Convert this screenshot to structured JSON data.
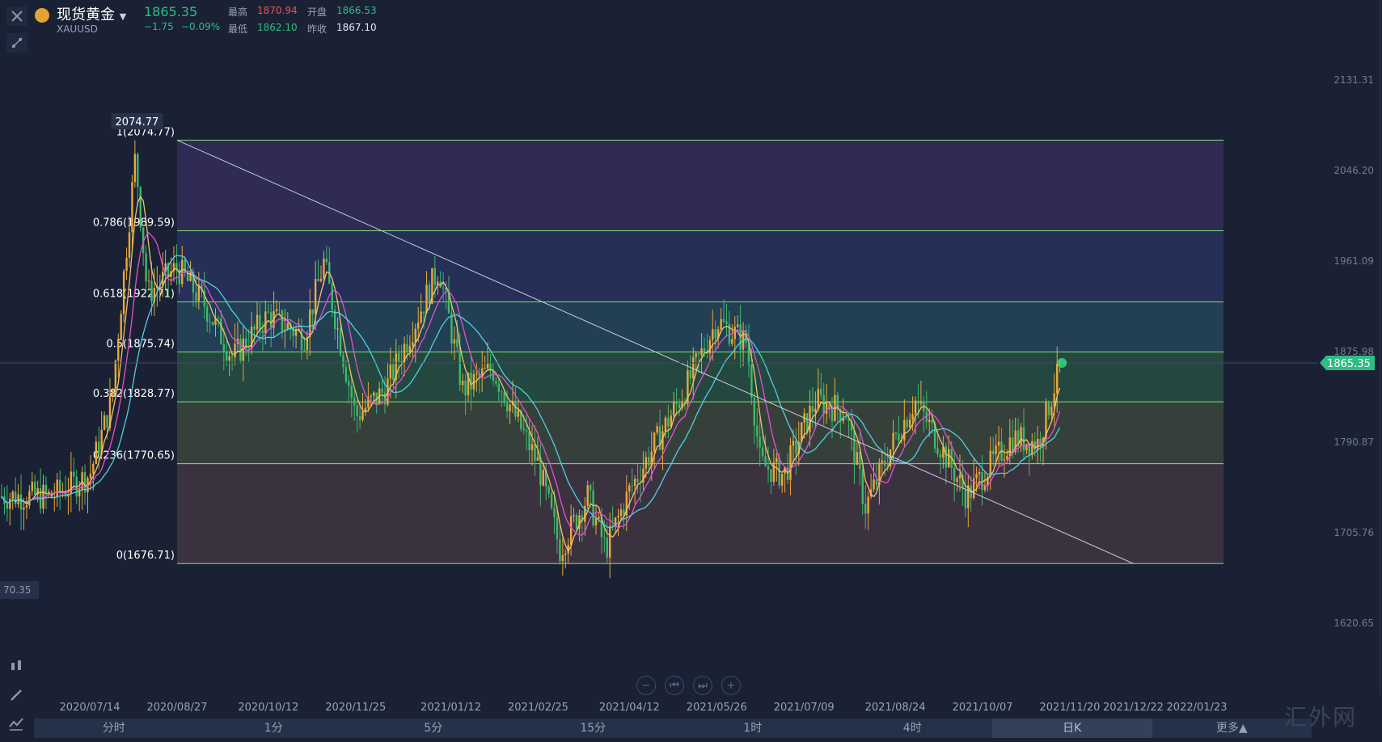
{
  "header": {
    "name": "现货黄金",
    "symbol": "XAUUSD",
    "price": "1865.35",
    "change": "−1.75",
    "change_pct": "−0.09%",
    "high_label": "最高",
    "high": "1870.94",
    "open_label": "开盘",
    "open": "1866.53",
    "low_label": "最低",
    "low": "1862.10",
    "prev_label": "昨收",
    "prev": "1867.10"
  },
  "timeframes": [
    "分时",
    "1分",
    "5分",
    "15分",
    "1时",
    "4时",
    "日K",
    "更多▲"
  ],
  "active_timeframe": "日K",
  "watermark": "汇外网",
  "colors": {
    "up": "#e8a83c",
    "down": "#3fb96b",
    "ma5": "#f0c36b",
    "ma10": "#e64fd1",
    "ma20": "#4fd0e0",
    "fib_line": "#7fe07c",
    "price_tag": "#2ebd85"
  },
  "chart_data": {
    "type": "candlestick",
    "y_ticks": [
      2131.31,
      2046.2,
      1961.09,
      1875.98,
      1790.87,
      1705.76,
      1620.65
    ],
    "x_ticks": [
      "2020/07/14",
      "2020/08/27",
      "2020/10/12",
      "2020/11/25",
      "2021/01/12",
      "2021/02/25",
      "2021/04/12",
      "2021/05/26",
      "2021/07/09",
      "2021/08/24",
      "2021/10/07",
      "2021/11/20",
      "2021/12/22",
      "2022/01/23"
    ],
    "current_price": "1865.35",
    "left_edge_label": "70.35",
    "high_marker": "2074.77",
    "fibonacci": [
      {
        "label": "1(2074.77)",
        "value": 2074.77
      },
      {
        "label": "0.786(1989.59)",
        "value": 1989.59
      },
      {
        "label": "0.618(1922.71)",
        "value": 1922.71
      },
      {
        "label": "0.5(1875.74)",
        "value": 1875.74
      },
      {
        "label": "0.382(1828.77)",
        "value": 1828.77
      },
      {
        "label": "0.236(1770.65)",
        "value": 1770.65
      },
      {
        "label": "0(1676.71)",
        "value": 1676.71
      }
    ],
    "trendline": {
      "from": {
        "date": "2020/08/27",
        "value": 2074.77
      },
      "to": {
        "date": "2021/12/22",
        "value": 1676.71
      }
    },
    "path_keypoints": [
      {
        "date": "2020/06/25",
        "value": 1740
      },
      {
        "date": "2020/07/14",
        "value": 1760
      },
      {
        "date": "2020/07/25",
        "value": 1830
      },
      {
        "date": "2020/08/06",
        "value": 2060
      },
      {
        "date": "2020/08/12",
        "value": 1930
      },
      {
        "date": "2020/08/27",
        "value": 1955
      },
      {
        "date": "2020/09/10",
        "value": 1920
      },
      {
        "date": "2020/09/24",
        "value": 1870
      },
      {
        "date": "2020/10/12",
        "value": 1910
      },
      {
        "date": "2020/10/30",
        "value": 1890
      },
      {
        "date": "2020/11/09",
        "value": 1960
      },
      {
        "date": "2020/11/25",
        "value": 1815
      },
      {
        "date": "2020/12/10",
        "value": 1840
      },
      {
        "date": "2021/01/06",
        "value": 1955
      },
      {
        "date": "2021/01/18",
        "value": 1840
      },
      {
        "date": "2021/02/02",
        "value": 1860
      },
      {
        "date": "2021/02/25",
        "value": 1770
      },
      {
        "date": "2021/03/08",
        "value": 1690
      },
      {
        "date": "2021/03/22",
        "value": 1740
      },
      {
        "date": "2021/03/31",
        "value": 1690
      },
      {
        "date": "2021/04/12",
        "value": 1745
      },
      {
        "date": "2021/05/10",
        "value": 1840
      },
      {
        "date": "2021/05/26",
        "value": 1905
      },
      {
        "date": "2021/06/10",
        "value": 1885
      },
      {
        "date": "2021/06/17",
        "value": 1770
      },
      {
        "date": "2021/06/29",
        "value": 1760
      },
      {
        "date": "2021/07/09",
        "value": 1805
      },
      {
        "date": "2021/07/15",
        "value": 1830
      },
      {
        "date": "2021/07/30",
        "value": 1820
      },
      {
        "date": "2021/08/09",
        "value": 1730
      },
      {
        "date": "2021/08/24",
        "value": 1795
      },
      {
        "date": "2021/09/03",
        "value": 1830
      },
      {
        "date": "2021/09/15",
        "value": 1790
      },
      {
        "date": "2021/09/29",
        "value": 1740
      },
      {
        "date": "2021/10/07",
        "value": 1760
      },
      {
        "date": "2021/10/22",
        "value": 1795
      },
      {
        "date": "2021/11/04",
        "value": 1790
      },
      {
        "date": "2021/11/16",
        "value": 1868
      }
    ]
  }
}
